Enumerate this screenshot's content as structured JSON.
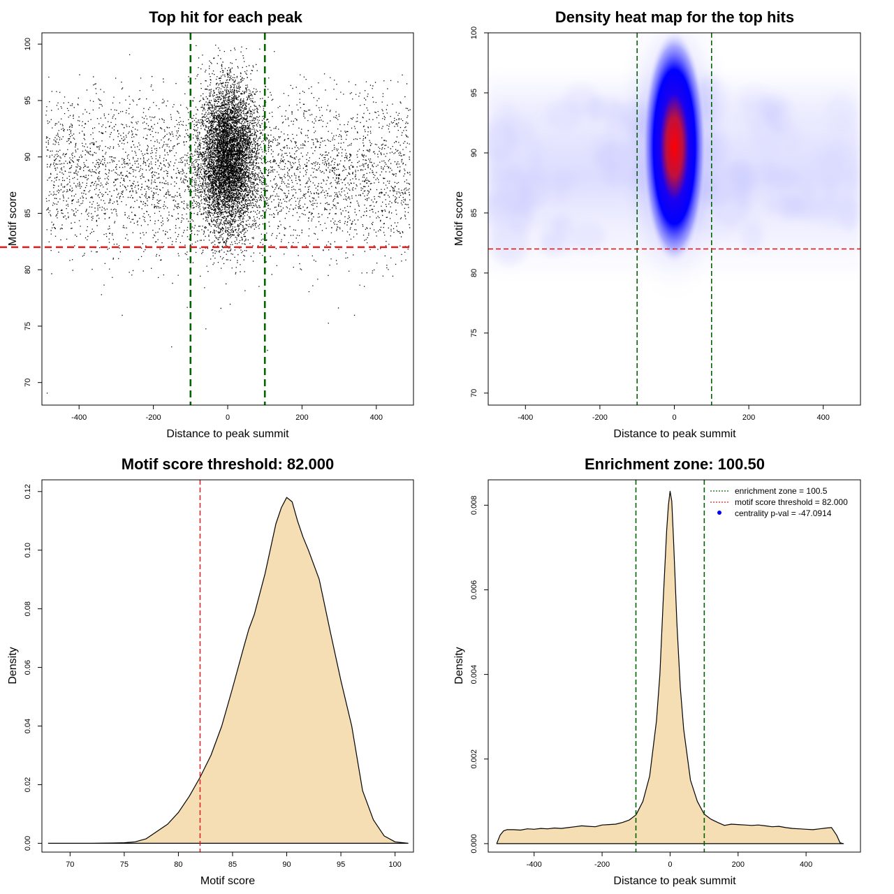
{
  "chart_data": [
    {
      "id": "scatter",
      "type": "scatter",
      "title": "Top hit for each peak",
      "xlabel": "Distance to peak summit",
      "ylabel": "Motif score",
      "xlim": [
        -500,
        500
      ],
      "ylim": [
        68,
        101
      ],
      "xticks": [
        -400,
        -200,
        0,
        200,
        400
      ],
      "yticks": [
        70,
        75,
        80,
        85,
        90,
        95,
        100
      ],
      "vlines": [
        -100,
        100
      ],
      "hline": 82,
      "colors": {
        "points": "#000000",
        "vlines": "#006400",
        "hline": "#e41a1c"
      },
      "background_distribution": {
        "x_range": [
          -490,
          490
        ],
        "y_center": 88.5,
        "y_sd": 3.6,
        "count": 4200
      },
      "central_distribution": {
        "x_center": 0,
        "x_sd": 38,
        "y_center": 90,
        "y_sd": 3.3,
        "count": 6500
      },
      "outliers": [
        {
          "x": -487,
          "y": 69.1
        },
        {
          "x": -152,
          "y": 73.2
        },
        {
          "x": -265,
          "y": 99.1
        },
        {
          "x": -60,
          "y": 74.8
        },
        {
          "x": 106,
          "y": 72.9
        },
        {
          "x": 270,
          "y": 75.3
        },
        {
          "x": 340,
          "y": 76.0
        },
        {
          "x": -285,
          "y": 76.0
        },
        {
          "x": 85,
          "y": 99.6
        },
        {
          "x": -110,
          "y": 76.7
        }
      ]
    },
    {
      "id": "heatmap",
      "type": "heatmap",
      "title": "Density heat map for the top hits",
      "xlabel": "Distance to peak summit",
      "ylabel": "Motif score",
      "xlim": [
        -500,
        500
      ],
      "ylim": [
        69,
        100
      ],
      "xticks": [
        -400,
        -200,
        0,
        200,
        400
      ],
      "yticks": [
        70,
        75,
        80,
        85,
        90,
        95,
        100
      ],
      "vlines": [
        -100,
        100
      ],
      "hline": 82,
      "peak": {
        "x": 0,
        "y": 90.5
      },
      "colors": {
        "low": "#ffffff",
        "mid": "#0000ff",
        "high": "#ff0000",
        "vlines": "#006400",
        "hline": "#e41a1c"
      }
    },
    {
      "id": "score-density",
      "type": "area",
      "title": "Motif score threshold: 82.000",
      "xlabel": "Motif score",
      "ylabel": "Density",
      "xlim": [
        67.4,
        101.7
      ],
      "ylim": [
        -0.003,
        0.124
      ],
      "xticks": [
        70,
        75,
        80,
        85,
        90,
        95,
        100
      ],
      "yticks": [
        0.0,
        0.02,
        0.04,
        0.06,
        0.08,
        0.1,
        0.12
      ],
      "ytick_labels": [
        "0.00",
        "0.02",
        "0.04",
        "0.06",
        "0.08",
        "0.10",
        "0.12"
      ],
      "vline": 82,
      "colors": {
        "fill": "#f5deb3",
        "line": "#000000",
        "vline": "#e41a1c"
      },
      "x": [
        68,
        72,
        74,
        75,
        76,
        77,
        78,
        79,
        80,
        81,
        82,
        83,
        84,
        85,
        86,
        86.5,
        87,
        88,
        89,
        89.5,
        90,
        90.5,
        91,
        91.5,
        92,
        93,
        94,
        95,
        96,
        97,
        98,
        99,
        100,
        101.2
      ],
      "y": [
        0,
        0,
        0.0001,
        0.0002,
        0.0005,
        0.0015,
        0.004,
        0.0065,
        0.0105,
        0.016,
        0.0225,
        0.03,
        0.04,
        0.053,
        0.0665,
        0.073,
        0.078,
        0.092,
        0.109,
        0.1145,
        0.118,
        0.1165,
        0.11,
        0.1045,
        0.1,
        0.09,
        0.0725,
        0.0555,
        0.04,
        0.018,
        0.008,
        0.0025,
        0.0005,
        0
      ]
    },
    {
      "id": "distance-density",
      "type": "area",
      "title": "Enrichment zone: 100.50",
      "xlabel": "Distance to peak summit",
      "ylabel": "Density",
      "xlim": [
        -535,
        560
      ],
      "ylim": [
        -0.0002,
        0.0086
      ],
      "xticks": [
        -400,
        -200,
        0,
        200,
        400
      ],
      "yticks": [
        0.0,
        0.002,
        0.004,
        0.006,
        0.008
      ],
      "ytick_labels": [
        "0.000",
        "0.002",
        "0.004",
        "0.006",
        "0.008"
      ],
      "vlines": [
        -100.5,
        100.5
      ],
      "colors": {
        "fill": "#f5deb3",
        "line": "#000000",
        "vlines": "#006400",
        "legend_zone": "#006400",
        "legend_threshold": "#e41a1c",
        "legend_point": "#0000ff"
      },
      "x": [
        -510,
        -500,
        -490,
        -480,
        -460,
        -440,
        -420,
        -400,
        -380,
        -360,
        -340,
        -320,
        -300,
        -280,
        -260,
        -240,
        -220,
        -200,
        -180,
        -160,
        -140,
        -120,
        -100,
        -80,
        -60,
        -40,
        -30,
        -20,
        -10,
        -5,
        0,
        5,
        10,
        20,
        30,
        40,
        60,
        80,
        100,
        120,
        140,
        160,
        180,
        200,
        220,
        240,
        260,
        280,
        300,
        320,
        340,
        360,
        380,
        400,
        420,
        440,
        460,
        475,
        490,
        500,
        510
      ],
      "y": [
        0,
        0.0002,
        0.0003,
        0.00033,
        0.00033,
        0.00032,
        0.00035,
        0.00034,
        0.00036,
        0.00035,
        0.00037,
        0.00036,
        0.00038,
        0.0004,
        0.00042,
        0.00041,
        0.0004,
        0.00044,
        0.00045,
        0.00046,
        0.0005,
        0.00056,
        0.00068,
        0.001,
        0.0016,
        0.0029,
        0.004,
        0.0058,
        0.0074,
        0.008,
        0.00833,
        0.0081,
        0.0072,
        0.0052,
        0.0037,
        0.0027,
        0.0015,
        0.001,
        0.0007,
        0.00058,
        0.0005,
        0.00043,
        0.00046,
        0.00045,
        0.00044,
        0.00043,
        0.00044,
        0.00042,
        0.0004,
        0.00041,
        0.00038,
        0.00036,
        0.00035,
        0.00034,
        0.00033,
        0.00035,
        0.00037,
        0.00038,
        0.0002,
        2e-05,
        0
      ],
      "legend": [
        {
          "label": "enrichment zone = 100.5",
          "kind": "dotted-line",
          "color": "#006400"
        },
        {
          "label": "motif score threshold = 82.000",
          "kind": "dotted-line",
          "color": "#e41a1c"
        },
        {
          "label": "centrality p-val = -47.0914",
          "kind": "point",
          "color": "#0000ff"
        }
      ]
    }
  ]
}
